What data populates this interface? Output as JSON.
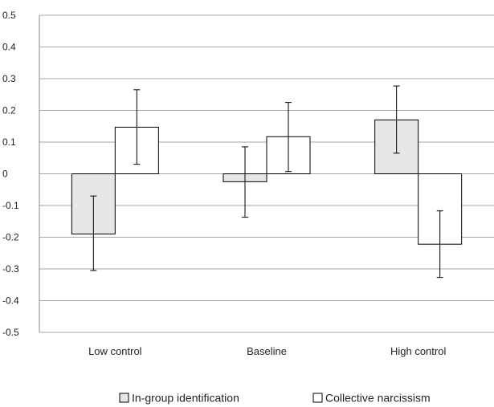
{
  "chart_data": {
    "type": "bar",
    "categories": [
      "Low control",
      "Baseline",
      "High control"
    ],
    "ylim": [
      -0.5,
      0.5
    ],
    "yticks": [
      "0.5",
      "0.4",
      "0.3",
      "0.2",
      "0.1",
      "0",
      "-0.1",
      "-0.2",
      "-0.3",
      "-0.4",
      "-0.5"
    ],
    "grid": true,
    "legend_position": "bottom",
    "series": [
      {
        "name": "In-group identification",
        "color": "#e6e6e6",
        "values": [
          -0.19,
          -0.025,
          0.17
        ],
        "error_low": [
          -0.305,
          -0.137,
          0.065
        ],
        "error_high": [
          -0.07,
          0.085,
          0.277
        ]
      },
      {
        "name": "Collective narcissism",
        "color": "#ffffff",
        "values": [
          0.147,
          0.117,
          -0.222
        ],
        "error_low": [
          0.03,
          0.007,
          -0.327
        ],
        "error_high": [
          0.265,
          0.225,
          -0.117
        ]
      }
    ]
  }
}
